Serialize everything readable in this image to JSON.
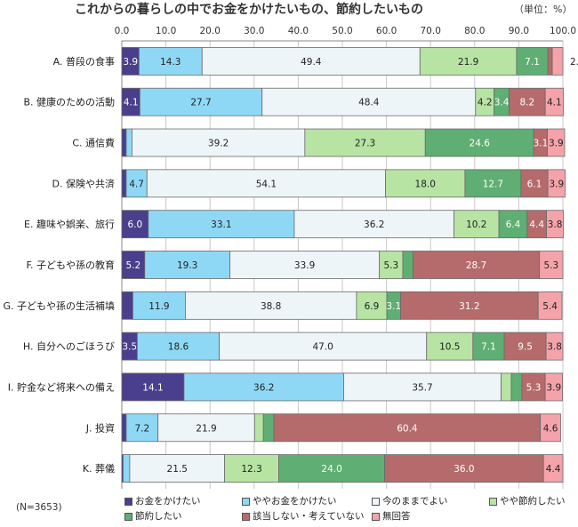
{
  "chart_data": {
    "type": "bar",
    "orientation": "horizontal-stacked",
    "title": "これからの暮らしの中でお金をかけたいもの、節約したいもの",
    "unit": "（単位：%）",
    "n_label": "(N=3653)",
    "xlim": [
      0,
      100
    ],
    "xticks": [
      "0.0",
      "10.0",
      "20.0",
      "30.0",
      "40.0",
      "50.0",
      "60.0",
      "70.0",
      "80.0",
      "90.0",
      "100.0"
    ],
    "grid": true,
    "legend_position": "bottom",
    "categories": [
      "A. 普段の食事",
      "B. 健康のための活動",
      "C. 通信費",
      "D. 保険や共済",
      "E. 趣味や娯楽、旅行",
      "F. 子どもや孫の教育",
      "G. 子どもや孫の生活補填",
      "H. 自分へのごほうび",
      "I. 貯金など将来への備え",
      "J. 投資",
      "K. 葬儀"
    ],
    "series": [
      {
        "name": "お金をかけたい",
        "color": "#4a3f8c",
        "values": [
          3.9,
          4.1,
          1.0,
          1.0,
          6.0,
          5.2,
          2.5,
          3.5,
          14.1,
          1.0,
          0.3
        ]
      },
      {
        "name": "ややお金をかけたい",
        "color": "#8fd8f5",
        "values": [
          14.3,
          27.7,
          1.3,
          4.7,
          33.1,
          19.3,
          11.9,
          18.6,
          36.2,
          7.2,
          1.5
        ]
      },
      {
        "name": "今のままでよい",
        "color": "#eef5f9",
        "values": [
          49.4,
          48.4,
          39.2,
          54.1,
          36.2,
          33.9,
          38.8,
          47.0,
          35.7,
          21.9,
          21.5
        ]
      },
      {
        "name": "やや節約したい",
        "color": "#b7e3a3",
        "values": [
          21.9,
          4.2,
          27.3,
          18.0,
          10.2,
          5.3,
          6.9,
          10.5,
          2.3,
          2.0,
          12.3
        ]
      },
      {
        "name": "節約したい",
        "color": "#5fae73",
        "values": [
          7.1,
          3.4,
          24.6,
          12.7,
          6.4,
          2.3,
          3.1,
          7.1,
          2.4,
          2.4,
          24.0
        ]
      },
      {
        "name": "該当しない・考えていない",
        "color": "#b56b6b",
        "values": [
          1.0,
          8.2,
          3.1,
          6.1,
          4.4,
          28.7,
          31.2,
          9.5,
          5.3,
          60.4,
          36.0
        ]
      },
      {
        "name": "無回答",
        "color": "#f4a3aa",
        "values": [
          2.4,
          4.1,
          3.9,
          3.9,
          3.8,
          5.3,
          5.4,
          3.8,
          3.9,
          4.6,
          4.4
        ]
      }
    ],
    "data_labels": [
      [
        "3.9",
        "14.3",
        "49.4",
        "21.9",
        "7.1",
        "",
        "2."
      ],
      [
        "4.1",
        "27.7",
        "48.4",
        "4.2",
        "3.4",
        "8.2",
        "4.1"
      ],
      [
        "",
        "",
        "39.2",
        "27.3",
        "24.6",
        "3.1",
        "3.9"
      ],
      [
        "",
        "4.7",
        "54.1",
        "18.0",
        "12.7",
        "6.1",
        "3.9"
      ],
      [
        "6.0",
        "33.1",
        "36.2",
        "10.2",
        "6.4",
        "4.4",
        "3.8"
      ],
      [
        "5.2",
        "19.3",
        "33.9",
        "5.3",
        "",
        "28.7",
        "5.3"
      ],
      [
        "",
        "11.9",
        "38.8",
        "6.9",
        "3.1",
        "31.2",
        "5.4"
      ],
      [
        "3.5",
        "18.6",
        "47.0",
        "10.5",
        "7.1",
        "9.5",
        "3.8"
      ],
      [
        "14.1",
        "36.2",
        "35.7",
        "",
        "",
        "5.3",
        "3.9"
      ],
      [
        "",
        "7.2",
        "21.9",
        "",
        "",
        "60.4",
        "4.6"
      ],
      [
        "",
        "",
        "21.5",
        "12.3",
        "24.0",
        "36.0",
        "4.4"
      ]
    ]
  }
}
